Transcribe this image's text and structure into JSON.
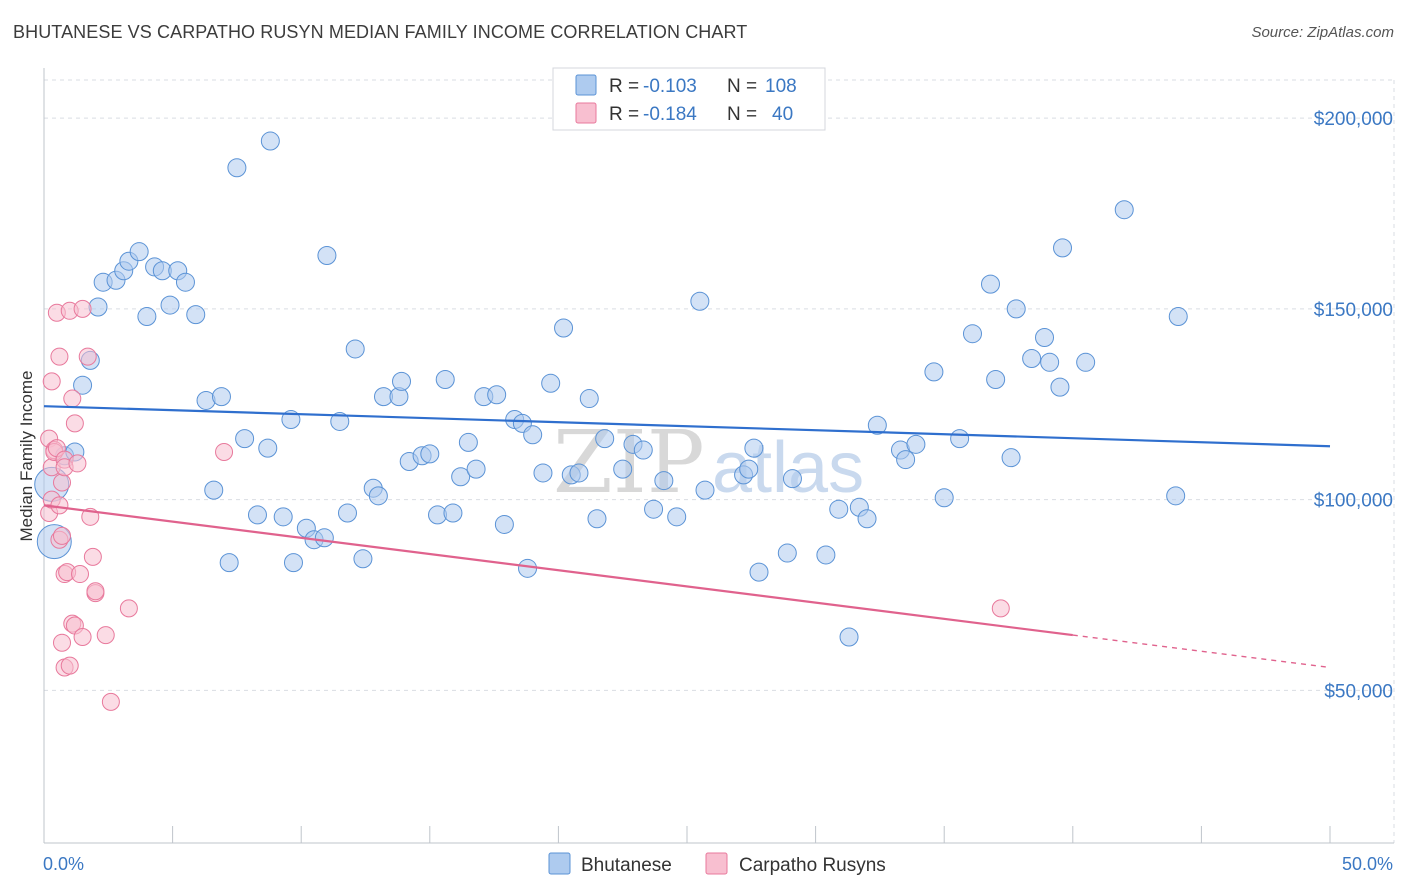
{
  "title": "BHUTANESE VS CARPATHO RUSYN MEDIAN FAMILY INCOME CORRELATION CHART",
  "source": "Source: ZipAtlas.com",
  "watermark": {
    "zip": "ZIP",
    "atlas": "atlas"
  },
  "legend": {
    "rows": [
      {
        "r_label": "R =",
        "r_value": "-0.103",
        "n_label": "N =",
        "n_value": "108"
      },
      {
        "r_label": "R =",
        "r_value": "-0.184",
        "n_label": "N =",
        "n_value": "40"
      }
    ]
  },
  "colors": {
    "blue_fill": "#aecbef",
    "blue_stroke": "#5b93d6",
    "blue_line": "#2f6fce",
    "pink_fill": "#f8bfd0",
    "pink_stroke": "#e8799c",
    "pink_line": "#e0628d",
    "grid": "#d9dde3",
    "tick_text": "#3b78c3"
  },
  "chart_data": {
    "type": "scatter",
    "title": "BHUTANESE VS CARPATHO RUSYN MEDIAN FAMILY INCOME CORRELATION CHART",
    "xlabel": "",
    "ylabel": "Median Family Income",
    "xlim": [
      0,
      50
    ],
    "ylim": [
      5000,
      210000
    ],
    "x_tick_labels": [
      "0.0%",
      "50.0%"
    ],
    "y_ticks": [
      {
        "value": 50000,
        "label": "$50,000"
      },
      {
        "value": 100000,
        "label": "$100,000"
      },
      {
        "value": 150000,
        "label": "$150,000"
      },
      {
        "value": 200000,
        "label": "$200,000"
      }
    ],
    "series": [
      {
        "name": "Bhutanese",
        "r": -0.103,
        "n": 108,
        "trend": {
          "x0": 0,
          "y0": 124500,
          "x1": 50,
          "y1": 114000
        },
        "points": [
          [
            0.3,
            104000
          ],
          [
            0.4,
            89000
          ],
          [
            0.8,
            111500
          ],
          [
            1.2,
            112500
          ],
          [
            1.5,
            130000
          ],
          [
            1.8,
            136500
          ],
          [
            2.1,
            150500
          ],
          [
            2.3,
            157000
          ],
          [
            2.8,
            157500
          ],
          [
            3.1,
            160000
          ],
          [
            3.3,
            162500
          ],
          [
            3.7,
            165000
          ],
          [
            4.0,
            148000
          ],
          [
            4.3,
            161000
          ],
          [
            4.6,
            160000
          ],
          [
            4.9,
            151000
          ],
          [
            5.2,
            160000
          ],
          [
            5.5,
            157000
          ],
          [
            5.9,
            148500
          ],
          [
            6.3,
            126000
          ],
          [
            6.6,
            102500
          ],
          [
            6.9,
            127000
          ],
          [
            7.2,
            83500
          ],
          [
            7.5,
            187000
          ],
          [
            7.8,
            116000
          ],
          [
            8.3,
            96000
          ],
          [
            8.7,
            113500
          ],
          [
            8.8,
            194000
          ],
          [
            9.3,
            95500
          ],
          [
            9.6,
            121000
          ],
          [
            9.7,
            83500
          ],
          [
            10.2,
            92500
          ],
          [
            10.5,
            89500
          ],
          [
            10.9,
            90000
          ],
          [
            11.0,
            164000
          ],
          [
            11.5,
            120500
          ],
          [
            11.8,
            96500
          ],
          [
            12.1,
            139500
          ],
          [
            12.4,
            84500
          ],
          [
            12.8,
            103000
          ],
          [
            13.0,
            101000
          ],
          [
            13.2,
            127000
          ],
          [
            13.8,
            127000
          ],
          [
            13.9,
            131000
          ],
          [
            14.2,
            110000
          ],
          [
            14.7,
            111500
          ],
          [
            15.0,
            112000
          ],
          [
            15.3,
            96000
          ],
          [
            15.6,
            131500
          ],
          [
            15.9,
            96500
          ],
          [
            16.2,
            106000
          ],
          [
            16.5,
            115000
          ],
          [
            16.8,
            108000
          ],
          [
            17.1,
            127000
          ],
          [
            17.6,
            127500
          ],
          [
            17.9,
            93500
          ],
          [
            18.3,
            121000
          ],
          [
            18.6,
            120000
          ],
          [
            18.8,
            82000
          ],
          [
            19.0,
            117000
          ],
          [
            19.4,
            107000
          ],
          [
            19.7,
            130500
          ],
          [
            20.2,
            145000
          ],
          [
            20.5,
            106500
          ],
          [
            20.8,
            107000
          ],
          [
            21.2,
            126500
          ],
          [
            21.5,
            95000
          ],
          [
            21.8,
            116000
          ],
          [
            22.5,
            108000
          ],
          [
            22.9,
            114500
          ],
          [
            23.3,
            113000
          ],
          [
            23.7,
            97500
          ],
          [
            24.1,
            105000
          ],
          [
            24.6,
            95500
          ],
          [
            25.5,
            152000
          ],
          [
            25.7,
            102500
          ],
          [
            27.2,
            106500
          ],
          [
            27.4,
            108000
          ],
          [
            27.6,
            113500
          ],
          [
            27.8,
            81000
          ],
          [
            28.9,
            86000
          ],
          [
            29.1,
            105500
          ],
          [
            30.4,
            85500
          ],
          [
            30.9,
            97500
          ],
          [
            31.3,
            64000
          ],
          [
            31.7,
            98000
          ],
          [
            32.0,
            95000
          ],
          [
            32.4,
            119500
          ],
          [
            33.3,
            113000
          ],
          [
            33.5,
            110500
          ],
          [
            33.9,
            114500
          ],
          [
            34.6,
            133500
          ],
          [
            35.0,
            100500
          ],
          [
            35.6,
            116000
          ],
          [
            36.1,
            143500
          ],
          [
            36.8,
            156500
          ],
          [
            37.0,
            131500
          ],
          [
            37.6,
            111000
          ],
          [
            37.8,
            150000
          ],
          [
            38.4,
            137000
          ],
          [
            38.9,
            142500
          ],
          [
            39.1,
            136000
          ],
          [
            39.5,
            129500
          ],
          [
            39.6,
            166000
          ],
          [
            40.5,
            136000
          ],
          [
            42.0,
            176000
          ],
          [
            44.1,
            148000
          ],
          [
            44.0,
            101000
          ]
        ]
      },
      {
        "name": "Carpatho Rusyns",
        "r": -0.184,
        "n": 40,
        "trend": {
          "x0": 0,
          "y0": 98500,
          "x1": 40,
          "y1": 64500,
          "dash_x1": 50,
          "dash_y1": 56000
        },
        "points": [
          [
            0.2,
            96500
          ],
          [
            0.2,
            116000
          ],
          [
            0.3,
            108500
          ],
          [
            0.3,
            100000
          ],
          [
            0.3,
            131000
          ],
          [
            0.4,
            113000
          ],
          [
            0.4,
            112500
          ],
          [
            0.5,
            149000
          ],
          [
            0.5,
            113500
          ],
          [
            0.6,
            89500
          ],
          [
            0.6,
            137500
          ],
          [
            0.6,
            98500
          ],
          [
            0.7,
            104500
          ],
          [
            0.7,
            90500
          ],
          [
            0.7,
            62500
          ],
          [
            0.8,
            110500
          ],
          [
            0.8,
            108500
          ],
          [
            0.8,
            80500
          ],
          [
            0.8,
            56000
          ],
          [
            0.9,
            81000
          ],
          [
            1.0,
            56500
          ],
          [
            1.0,
            149500
          ],
          [
            1.1,
            126500
          ],
          [
            1.1,
            67500
          ],
          [
            1.2,
            120000
          ],
          [
            1.2,
            67000
          ],
          [
            1.3,
            109500
          ],
          [
            1.4,
            80500
          ],
          [
            1.5,
            150000
          ],
          [
            1.5,
            64000
          ],
          [
            1.7,
            137500
          ],
          [
            1.8,
            95500
          ],
          [
            1.9,
            85000
          ],
          [
            2.0,
            75500
          ],
          [
            2.0,
            76000
          ],
          [
            2.4,
            64500
          ],
          [
            2.6,
            47000
          ],
          [
            3.3,
            71500
          ],
          [
            7.0,
            112500
          ],
          [
            37.2,
            71500
          ]
        ]
      }
    ]
  },
  "bottom_legend": [
    {
      "label": "Bhutanese"
    },
    {
      "label": "Carpatho Rusyns"
    }
  ]
}
